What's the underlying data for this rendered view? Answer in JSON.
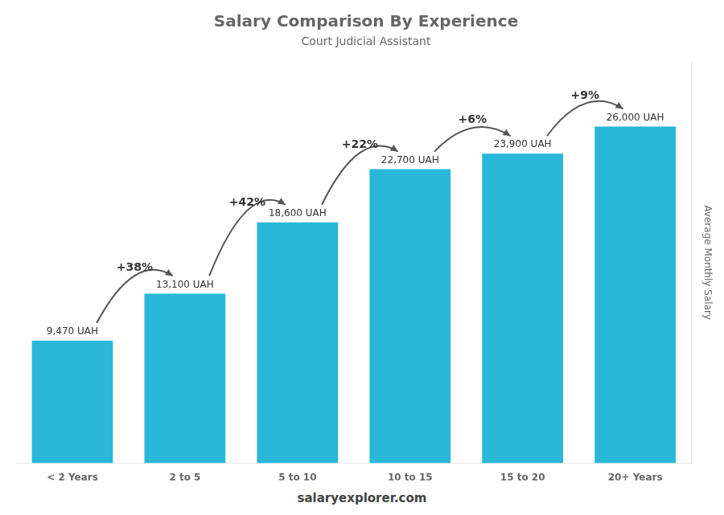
{
  "chart_data": {
    "type": "bar",
    "title": "Salary Comparison By Experience",
    "subtitle": "Court Judicial Assistant",
    "categories": [
      "< 2 Years",
      "2 to 5",
      "5 to 10",
      "10 to 15",
      "15 to 20",
      "20+ Years"
    ],
    "values": [
      9470,
      13100,
      18600,
      22700,
      23900,
      26000
    ],
    "value_labels": [
      "9,470 UAH",
      "13,100 UAH",
      "18,600 UAH",
      "22,700 UAH",
      "23,900 UAH",
      "26,000 UAH"
    ],
    "data_labels": true,
    "color": "#29b8d8",
    "ylabel": "Average Monthly Salary",
    "ylim": [
      0,
      31000
    ],
    "grid": false,
    "tick_labels": "x",
    "annotations": [
      {
        "text": "+38%",
        "from": "< 2 Years",
        "to": "2 to 5"
      },
      {
        "text": "+42%",
        "from": "2 to 5",
        "to": "5 to 10"
      },
      {
        "text": "+22%",
        "from": "5 to 10",
        "to": "10 to 15"
      },
      {
        "text": "+6%",
        "from": "10 to 15",
        "to": "15 to 20"
      },
      {
        "text": "+9%",
        "from": "15 to 20",
        "to": "20+ Years"
      }
    ],
    "footer": [
      "salary",
      "explorer.com"
    ]
  }
}
